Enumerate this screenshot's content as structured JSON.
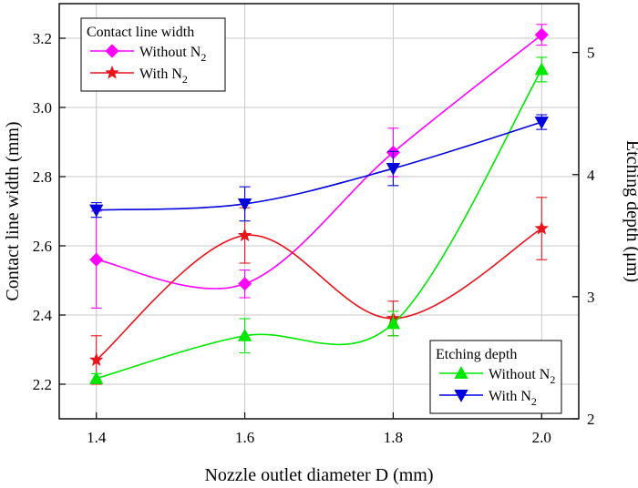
{
  "chart_data": {
    "type": "line",
    "xlabel": "Nozzle outlet diameter D (mm)",
    "ylabel_left": "Contact line width (mm)",
    "ylabel_right": "Etching depth (μm)",
    "x": [
      1.4,
      1.6,
      1.8,
      2.0
    ],
    "x_ticks": [
      "1.4",
      "1.6",
      "1.8",
      "2.0"
    ],
    "xlim": [
      1.35,
      2.05
    ],
    "ylim_left": [
      2.1,
      3.3
    ],
    "yticks_left": [
      "2.2",
      "2.4",
      "2.6",
      "2.8",
      "3.0",
      "3.2"
    ],
    "ylim_right": [
      2.0,
      5.4
    ],
    "yticks_right": [
      "2",
      "3",
      "4",
      "5"
    ],
    "grid": true,
    "legend_groups": [
      {
        "title": "Contact line width",
        "placement": "top-left",
        "entries": [
          {
            "name": "Without N",
            "sub": "2",
            "series": 0
          },
          {
            "name": "With N",
            "sub": "2",
            "series": 1
          }
        ]
      },
      {
        "title": "Etching depth",
        "placement": "bottom-right",
        "entries": [
          {
            "name": "Without N",
            "sub": "2",
            "series": 2
          },
          {
            "name": "With N",
            "sub": "2",
            "series": 3
          }
        ]
      }
    ],
    "series": [
      {
        "name": "Without N2",
        "axis": "left",
        "marker": "diamond",
        "color": "#ff00ff",
        "values": [
          2.56,
          2.49,
          2.87,
          3.21
        ],
        "errors": [
          0.14,
          0.04,
          0.07,
          0.03
        ]
      },
      {
        "name": "With N2",
        "axis": "left",
        "marker": "star",
        "color": "#e8141c",
        "values": [
          2.27,
          2.63,
          2.39,
          2.65
        ],
        "errors": [
          0.07,
          0.08,
          0.05,
          0.09
        ]
      },
      {
        "name": "Without N2",
        "axis": "right",
        "marker": "triangle-up",
        "color": "#00e800",
        "values": [
          2.33,
          2.68,
          2.78,
          4.86
        ],
        "errors": [
          0.04,
          0.14,
          0.1,
          0.1
        ]
      },
      {
        "name": "With N2",
        "axis": "right",
        "marker": "triangle-down",
        "color": "#0000dd",
        "values": [
          3.71,
          3.76,
          4.05,
          4.43
        ],
        "errors": [
          0.06,
          0.14,
          0.14,
          0.06
        ]
      }
    ]
  }
}
